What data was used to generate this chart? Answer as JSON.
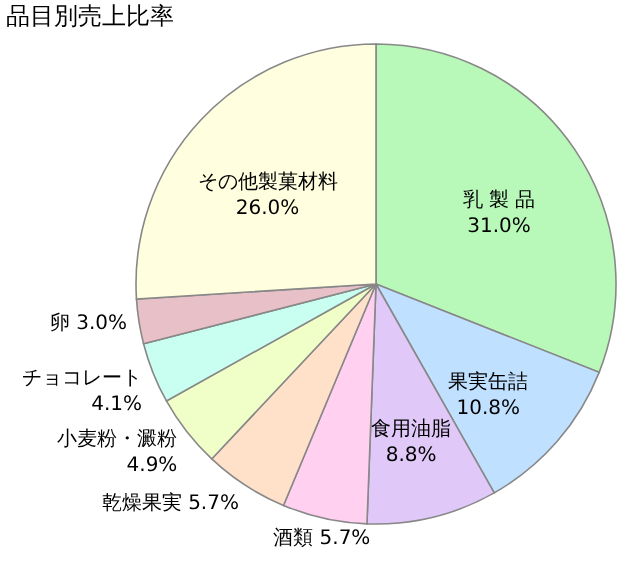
{
  "chart_data": {
    "type": "pie",
    "title": "品目別売上比率",
    "categories": [
      "乳 製 品",
      "果実缶詰",
      "食用油脂",
      "酒類",
      "乾燥果実",
      "小麦粉・澱粉",
      "チョコレート",
      "卵",
      "その他製菓材料"
    ],
    "values": [
      31.0,
      10.8,
      8.8,
      5.7,
      5.7,
      4.9,
      4.1,
      3.0,
      26.0
    ],
    "value_labels": [
      "31.0%",
      "10.8%",
      "8.8%",
      "5.7%",
      "5.7%",
      "4.9%",
      "4.1%",
      "3.0%",
      "26.0%"
    ],
    "colors": [
      "#b8f8b8",
      "#c0e0ff",
      "#e0c8f8",
      "#ffd0f0",
      "#ffe0c8",
      "#f0ffc8",
      "#c8fff0",
      "#e8c0c8",
      "#ffffe0"
    ]
  }
}
